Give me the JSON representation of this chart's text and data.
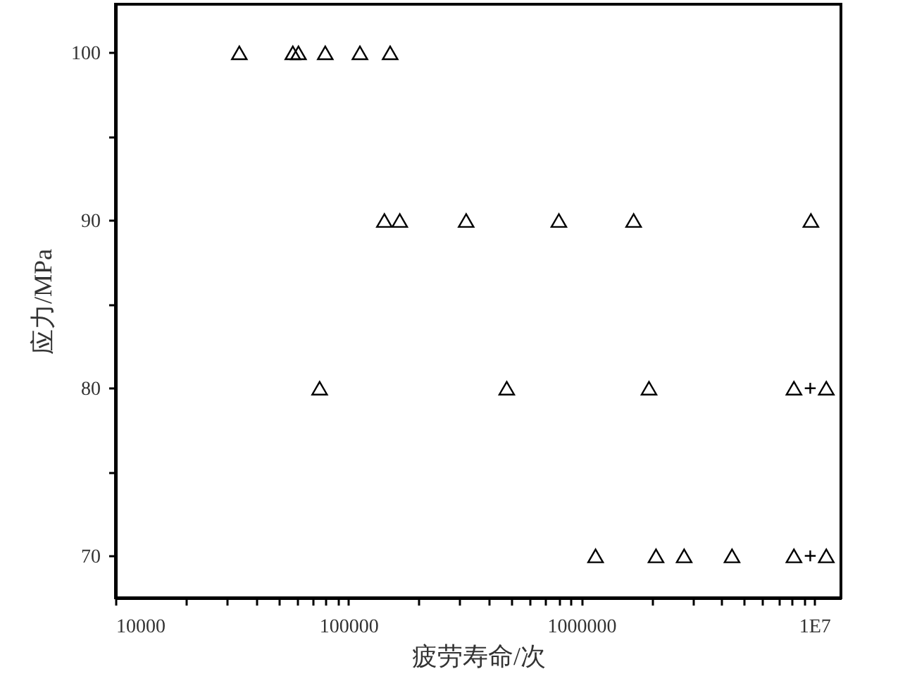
{
  "chart_data": {
    "type": "scatter",
    "xlabel": "疲劳寿命/次",
    "ylabel": "应力/MPa",
    "log": "x",
    "marker": "triangle",
    "grid": false,
    "xlim": [
      10000,
      13000000
    ],
    "ylim": [
      67.5,
      102.9
    ],
    "xticks": [
      10000,
      {
        "value": 20000,
        "label": null
      },
      {
        "value": 30000,
        "label": null
      },
      {
        "value": 40000,
        "label": null
      },
      {
        "value": 50000,
        "label": null
      },
      {
        "value": 60000,
        "label": null
      },
      {
        "value": 70000,
        "label": null
      },
      {
        "value": 80000,
        "label": null
      },
      {
        "value": 90000,
        "label": null
      },
      100000,
      {
        "value": 200000,
        "label": null
      },
      {
        "value": 300000,
        "label": null
      },
      {
        "value": 400000,
        "label": null
      },
      {
        "value": 500000,
        "label": null
      },
      {
        "value": 600000,
        "label": null
      },
      {
        "value": 700000,
        "label": null
      },
      {
        "value": 800000,
        "label": null
      },
      {
        "value": 900000,
        "label": null
      },
      1000000,
      {
        "value": 2000000,
        "label": null
      },
      {
        "value": 3000000,
        "label": null
      },
      {
        "value": 4000000,
        "label": null
      },
      {
        "value": 5000000,
        "label": null
      },
      {
        "value": 6000000,
        "label": null
      },
      {
        "value": 7000000,
        "label": null
      },
      {
        "value": 8000000,
        "label": null
      },
      {
        "value": 9000000,
        "label": null
      },
      {
        "value": 10000000,
        "label": "1E7"
      }
    ],
    "yticks": [
      70,
      {
        "value": 75,
        "label": null
      },
      80,
      {
        "value": 85,
        "label": null
      },
      90,
      {
        "value": 95,
        "label": null
      },
      100
    ],
    "series": [
      {
        "color": "#000000",
        "x": [
          34000,
          57700,
          61000,
          79500,
          112000,
          151000,
          142600,
          166000,
          320000,
          800000,
          1675000,
          9660000,
          75200,
          478000,
          1950000,
          8170000,
          11250000,
          1150000,
          2090000,
          2760000,
          4430000,
          8170000,
          11250000
        ],
        "values": [
          100,
          100,
          100,
          100,
          100,
          100,
          90,
          90,
          90,
          90,
          90,
          90,
          80,
          80,
          80,
          80,
          80,
          70,
          70,
          70,
          70,
          70,
          70
        ]
      },
      {
        "color": "#000000",
        "marker": "cross",
        "x": [
          9600000,
          9600000
        ],
        "values": [
          80,
          70
        ]
      }
    ]
  }
}
